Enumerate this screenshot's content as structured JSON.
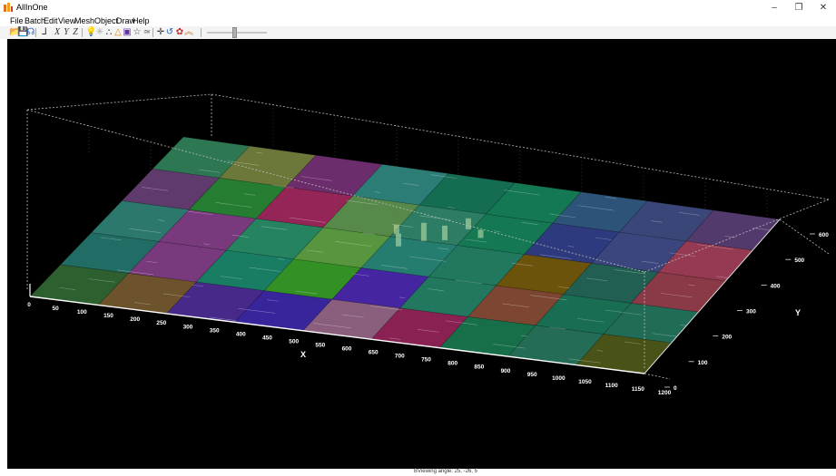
{
  "window": {
    "title": "AllInOne"
  },
  "menu": [
    "File",
    "Batch",
    "Edit",
    "View",
    "Mesh",
    "Object",
    "Draw",
    "Help"
  ],
  "toolbar": {
    "icons": [
      "open-folder-icon",
      "save-icon",
      "network-icon",
      "axis-icon",
      "x-axis-icon",
      "y-axis-icon",
      "z-axis-icon",
      "light-bulb-icon",
      "sparkle-icon",
      "mesh-icon",
      "fill-icon",
      "palette-icon",
      "star-icon",
      "curve-icon",
      "move-icon",
      "rotate-icon",
      "paint-icon",
      "wave-icon"
    ],
    "glyphs": [
      "📂",
      "💾",
      "☊",
      "⅃",
      "X",
      "Y",
      "Z",
      "💡",
      "✳",
      "⛬",
      "△",
      "▣",
      "☆",
      "≃",
      "✛",
      "↺",
      "✿",
      "︽"
    ],
    "slider_value": 0.45
  },
  "scene": {
    "x_axis_label": "X",
    "y_axis_label": "Y",
    "z_axis_label": "",
    "x_ticks": [
      "0",
      "50",
      "100",
      "150",
      "200",
      "250",
      "300",
      "350",
      "400",
      "450",
      "500",
      "550",
      "600",
      "650",
      "700",
      "750",
      "800",
      "850",
      "900",
      "950",
      "1000",
      "1050",
      "1100",
      "1150",
      "1200"
    ],
    "y_ticks": [
      "0",
      "100",
      "200",
      "300",
      "400",
      "500",
      "600"
    ]
  },
  "status": {
    "text": "BViewing angle: 25, -26, 5"
  }
}
